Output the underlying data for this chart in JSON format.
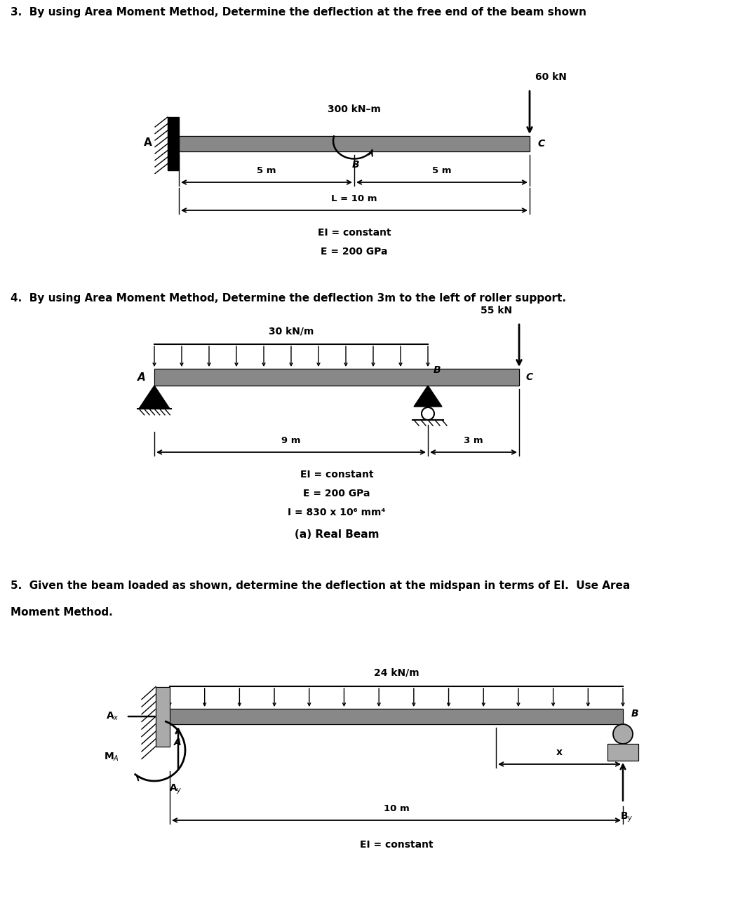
{
  "bg_color": "#ffffff",
  "fig_width": 10.72,
  "fig_height": 13.08,
  "prob3": {
    "title": "3.  By using Area Moment Method, Determine the deflection at the free end of the beam shown",
    "moment_label": "300 kN–m",
    "force_label": "60 kN",
    "dim1": "5 m",
    "dim2": "5 m",
    "dim3": "L = 10 m",
    "info1": "EI = constant",
    "info2": "E = 200 GPa"
  },
  "prob4": {
    "title": "4.  By using Area Moment Method, Determine the deflection 3m to the left of roller support.",
    "load_label": "30 kN/m",
    "force_label": "55 kN",
    "dim1": "9 m",
    "dim2": "3 m",
    "info1": "EI = constant",
    "info2": "E = 200 GPa",
    "info3": "I = 830 x 10⁶ mm⁴",
    "caption": "(a) Real Beam"
  },
  "prob5": {
    "title_line1": "5.  Given the beam loaded as shown, determine the deflection at the midspan in terms of EI.  Use Area",
    "title_line2": "Moment Method.",
    "load_label": "24 kN/m",
    "dim1": "10 m",
    "info1": "EI = constant",
    "label_x": "x",
    "label_Ax": "A",
    "label_Ay": "A",
    "label_By": "B",
    "label_MA": "M"
  }
}
